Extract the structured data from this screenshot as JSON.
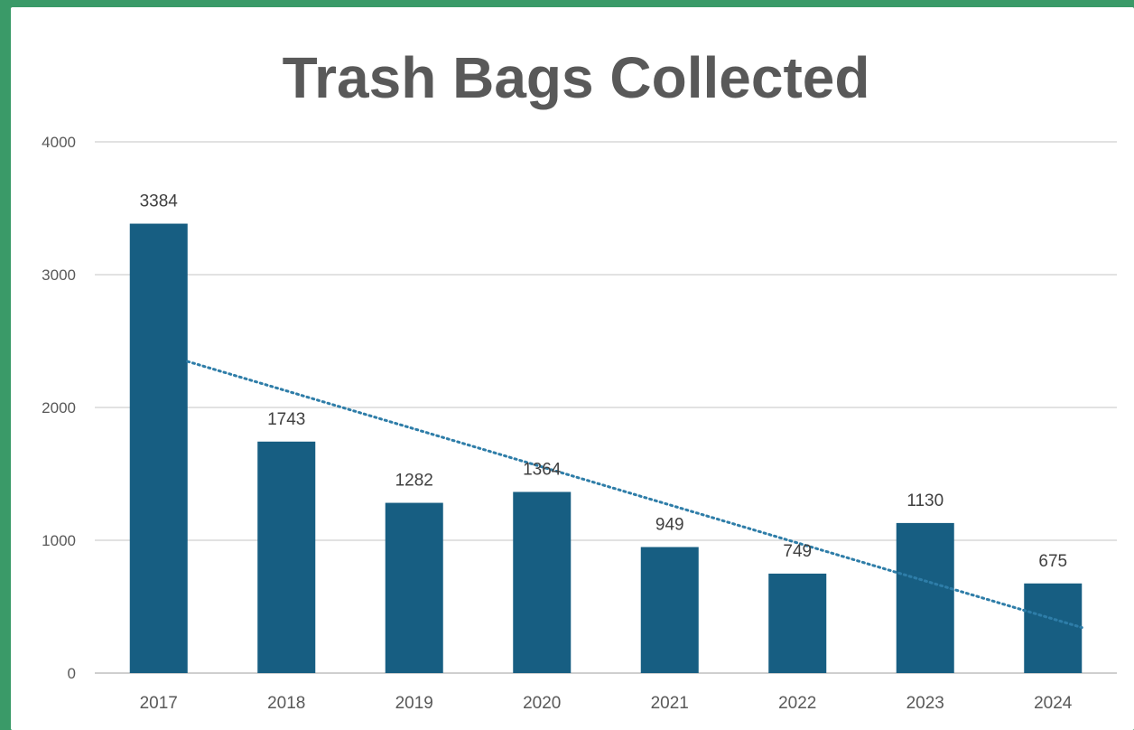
{
  "chart_data": {
    "type": "bar",
    "title": "Trash Bags Collected",
    "xlabel": "",
    "ylabel": "",
    "categories": [
      "2017",
      "2018",
      "2019",
      "2020",
      "2021",
      "2022",
      "2023",
      "2024"
    ],
    "values": [
      3384,
      1743,
      1282,
      1364,
      949,
      749,
      1130,
      675
    ],
    "data_labels": [
      "3384",
      "1743",
      "1282",
      "1364",
      "949",
      "749",
      "1130",
      "675"
    ],
    "ylim": [
      0,
      4000
    ],
    "yticks": [
      0,
      1000,
      2000,
      3000,
      4000
    ],
    "ytick_labels": [
      "0",
      "1000",
      "2000",
      "3000",
      "4000"
    ],
    "grid": true,
    "legend": "none",
    "trendline": {
      "type": "linear",
      "style": "dotted"
    },
    "colors": {
      "bar": "#175e82",
      "trendline": "#2e7da8",
      "grid": "#d9d9d9",
      "title": "#595959",
      "frame": "#3a9a68"
    }
  }
}
